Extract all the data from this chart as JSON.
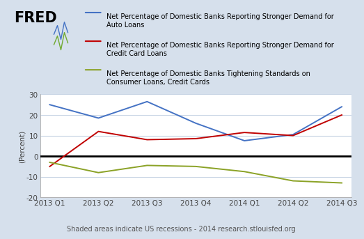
{
  "x_labels": [
    "2013 Q1",
    "2013 Q2",
    "2013 Q3",
    "2013 Q4",
    "2014 Q1",
    "2014 Q2",
    "2014 Q3"
  ],
  "blue_line": [
    25,
    18.5,
    26.5,
    16,
    7.5,
    10.5,
    24
  ],
  "red_line": [
    -5,
    12,
    8,
    8.5,
    11.5,
    10,
    20
  ],
  "green_line": [
    -3,
    -8,
    -4.5,
    -5,
    -7.5,
    -12,
    -13
  ],
  "blue_color": "#4472C4",
  "red_color": "#C00000",
  "green_color": "#8BA226",
  "zero_line_color": "#000000",
  "background_color": "#D6E0EC",
  "plot_bg_color": "#FFFFFF",
  "grid_color": "#C8D4E4",
  "ylim": [
    -20,
    30
  ],
  "yticks": [
    -20,
    -10,
    0,
    10,
    20,
    30
  ],
  "ylabel": "(Percent)",
  "legend_blue": "Net Percentage of Domestic Banks Reporting Stronger Demand for\nAuto Loans",
  "legend_red": "Net Percentage of Domestic Banks Reporting Stronger Demand for\nCredit Card Loans",
  "legend_green": "Net Percentage of Domestic Banks Tightening Standards on\nConsumer Loans, Credit Cards",
  "footer": "Shaded areas indicate US recessions - 2014 research.stlouisfed.org",
  "fred_label": "FRED",
  "legend_fontsize": 7.0,
  "tick_fontsize": 7.5,
  "ylabel_fontsize": 7.5,
  "footer_fontsize": 7.0
}
